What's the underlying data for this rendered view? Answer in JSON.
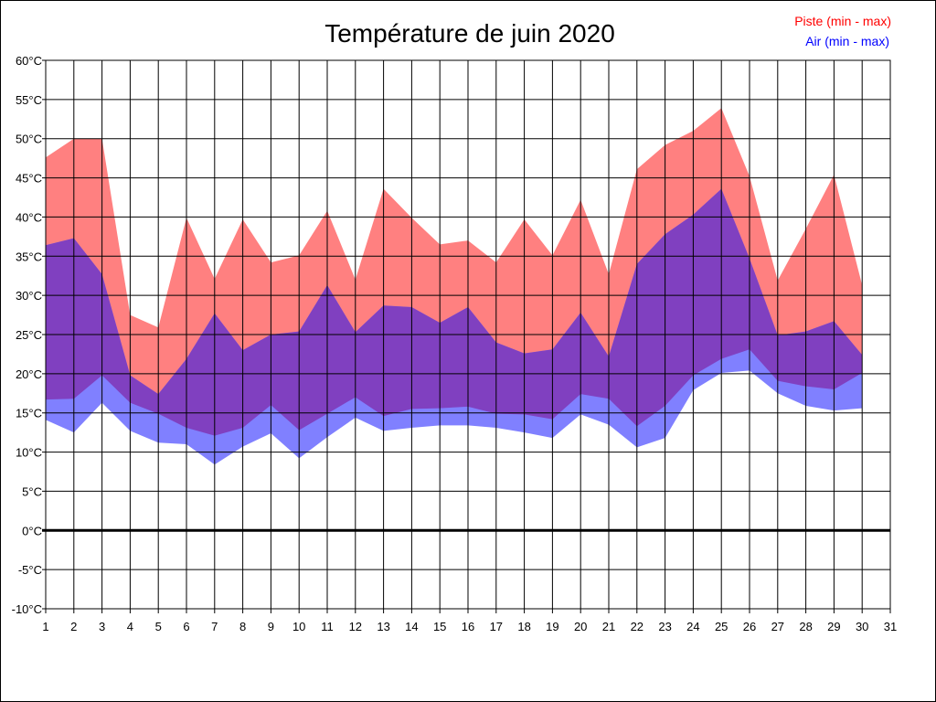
{
  "chart_data": {
    "type": "area",
    "title": "Température de juin 2020",
    "xlabel": "",
    "ylabel": "",
    "x": [
      1,
      2,
      3,
      4,
      5,
      6,
      7,
      8,
      9,
      10,
      11,
      12,
      13,
      14,
      15,
      16,
      17,
      18,
      19,
      20,
      21,
      22,
      23,
      24,
      25,
      26,
      27,
      28,
      29,
      30
    ],
    "xlim": [
      1,
      31
    ],
    "xticks": [
      "1",
      "2",
      "3",
      "4",
      "5",
      "6",
      "7",
      "8",
      "9",
      "10",
      "11",
      "12",
      "13",
      "14",
      "15",
      "16",
      "17",
      "18",
      "19",
      "20",
      "21",
      "22",
      "23",
      "24",
      "25",
      "26",
      "27",
      "28",
      "29",
      "30",
      "31"
    ],
    "ylim": [
      -10,
      60
    ],
    "yticks": [
      "-10°C",
      "-5°C",
      "0°C",
      "5°C",
      "10°C",
      "15°C",
      "20°C",
      "25°C",
      "30°C",
      "35°C",
      "40°C",
      "45°C",
      "50°C",
      "55°C",
      "60°C"
    ],
    "grid": true,
    "legend_position": "top-right",
    "series": [
      {
        "name": "Piste (min - max)",
        "color": "#ff0000",
        "fill": "#ff8080",
        "min": [
          16.7,
          16.8,
          19.8,
          16.3,
          14.9,
          13.1,
          12.1,
          13.1,
          16.0,
          12.8,
          14.9,
          17.0,
          14.6,
          15.5,
          15.6,
          15.8,
          14.9,
          14.8,
          14.2,
          17.4,
          16.8,
          13.3,
          15.9,
          19.8,
          21.9,
          23.1,
          19.1,
          18.4,
          18.0,
          20.1
        ],
        "max": [
          47.6,
          50.0,
          50.0,
          27.5,
          25.9,
          39.9,
          32.1,
          39.7,
          34.2,
          35.1,
          40.8,
          32.0,
          43.6,
          39.9,
          36.5,
          37.0,
          34.2,
          39.7,
          35.1,
          42.2,
          32.7,
          46.1,
          49.2,
          51.0,
          53.9,
          45.2,
          31.9,
          38.5,
          45.4,
          31.3
        ]
      },
      {
        "name": "Air (min - max)",
        "color": "#0000ff",
        "fill": "#8080ff",
        "min": [
          14.1,
          12.5,
          16.3,
          12.7,
          11.2,
          11.0,
          8.4,
          10.7,
          12.4,
          9.2,
          11.9,
          14.4,
          12.7,
          13.1,
          13.4,
          13.4,
          13.1,
          12.5,
          11.8,
          14.8,
          13.5,
          10.6,
          11.8,
          17.9,
          20.1,
          20.4,
          17.5,
          15.9,
          15.3,
          15.6
        ],
        "max": [
          36.4,
          37.3,
          32.7,
          19.8,
          17.4,
          21.9,
          27.7,
          23.0,
          25.0,
          25.4,
          31.3,
          25.3,
          28.7,
          28.5,
          26.5,
          28.5,
          24.0,
          22.6,
          23.1,
          27.8,
          22.2,
          34.0,
          37.8,
          40.3,
          43.6,
          34.7,
          24.9,
          25.4,
          26.7,
          22.4
        ]
      }
    ],
    "overlap_fill": "#8040c0"
  }
}
